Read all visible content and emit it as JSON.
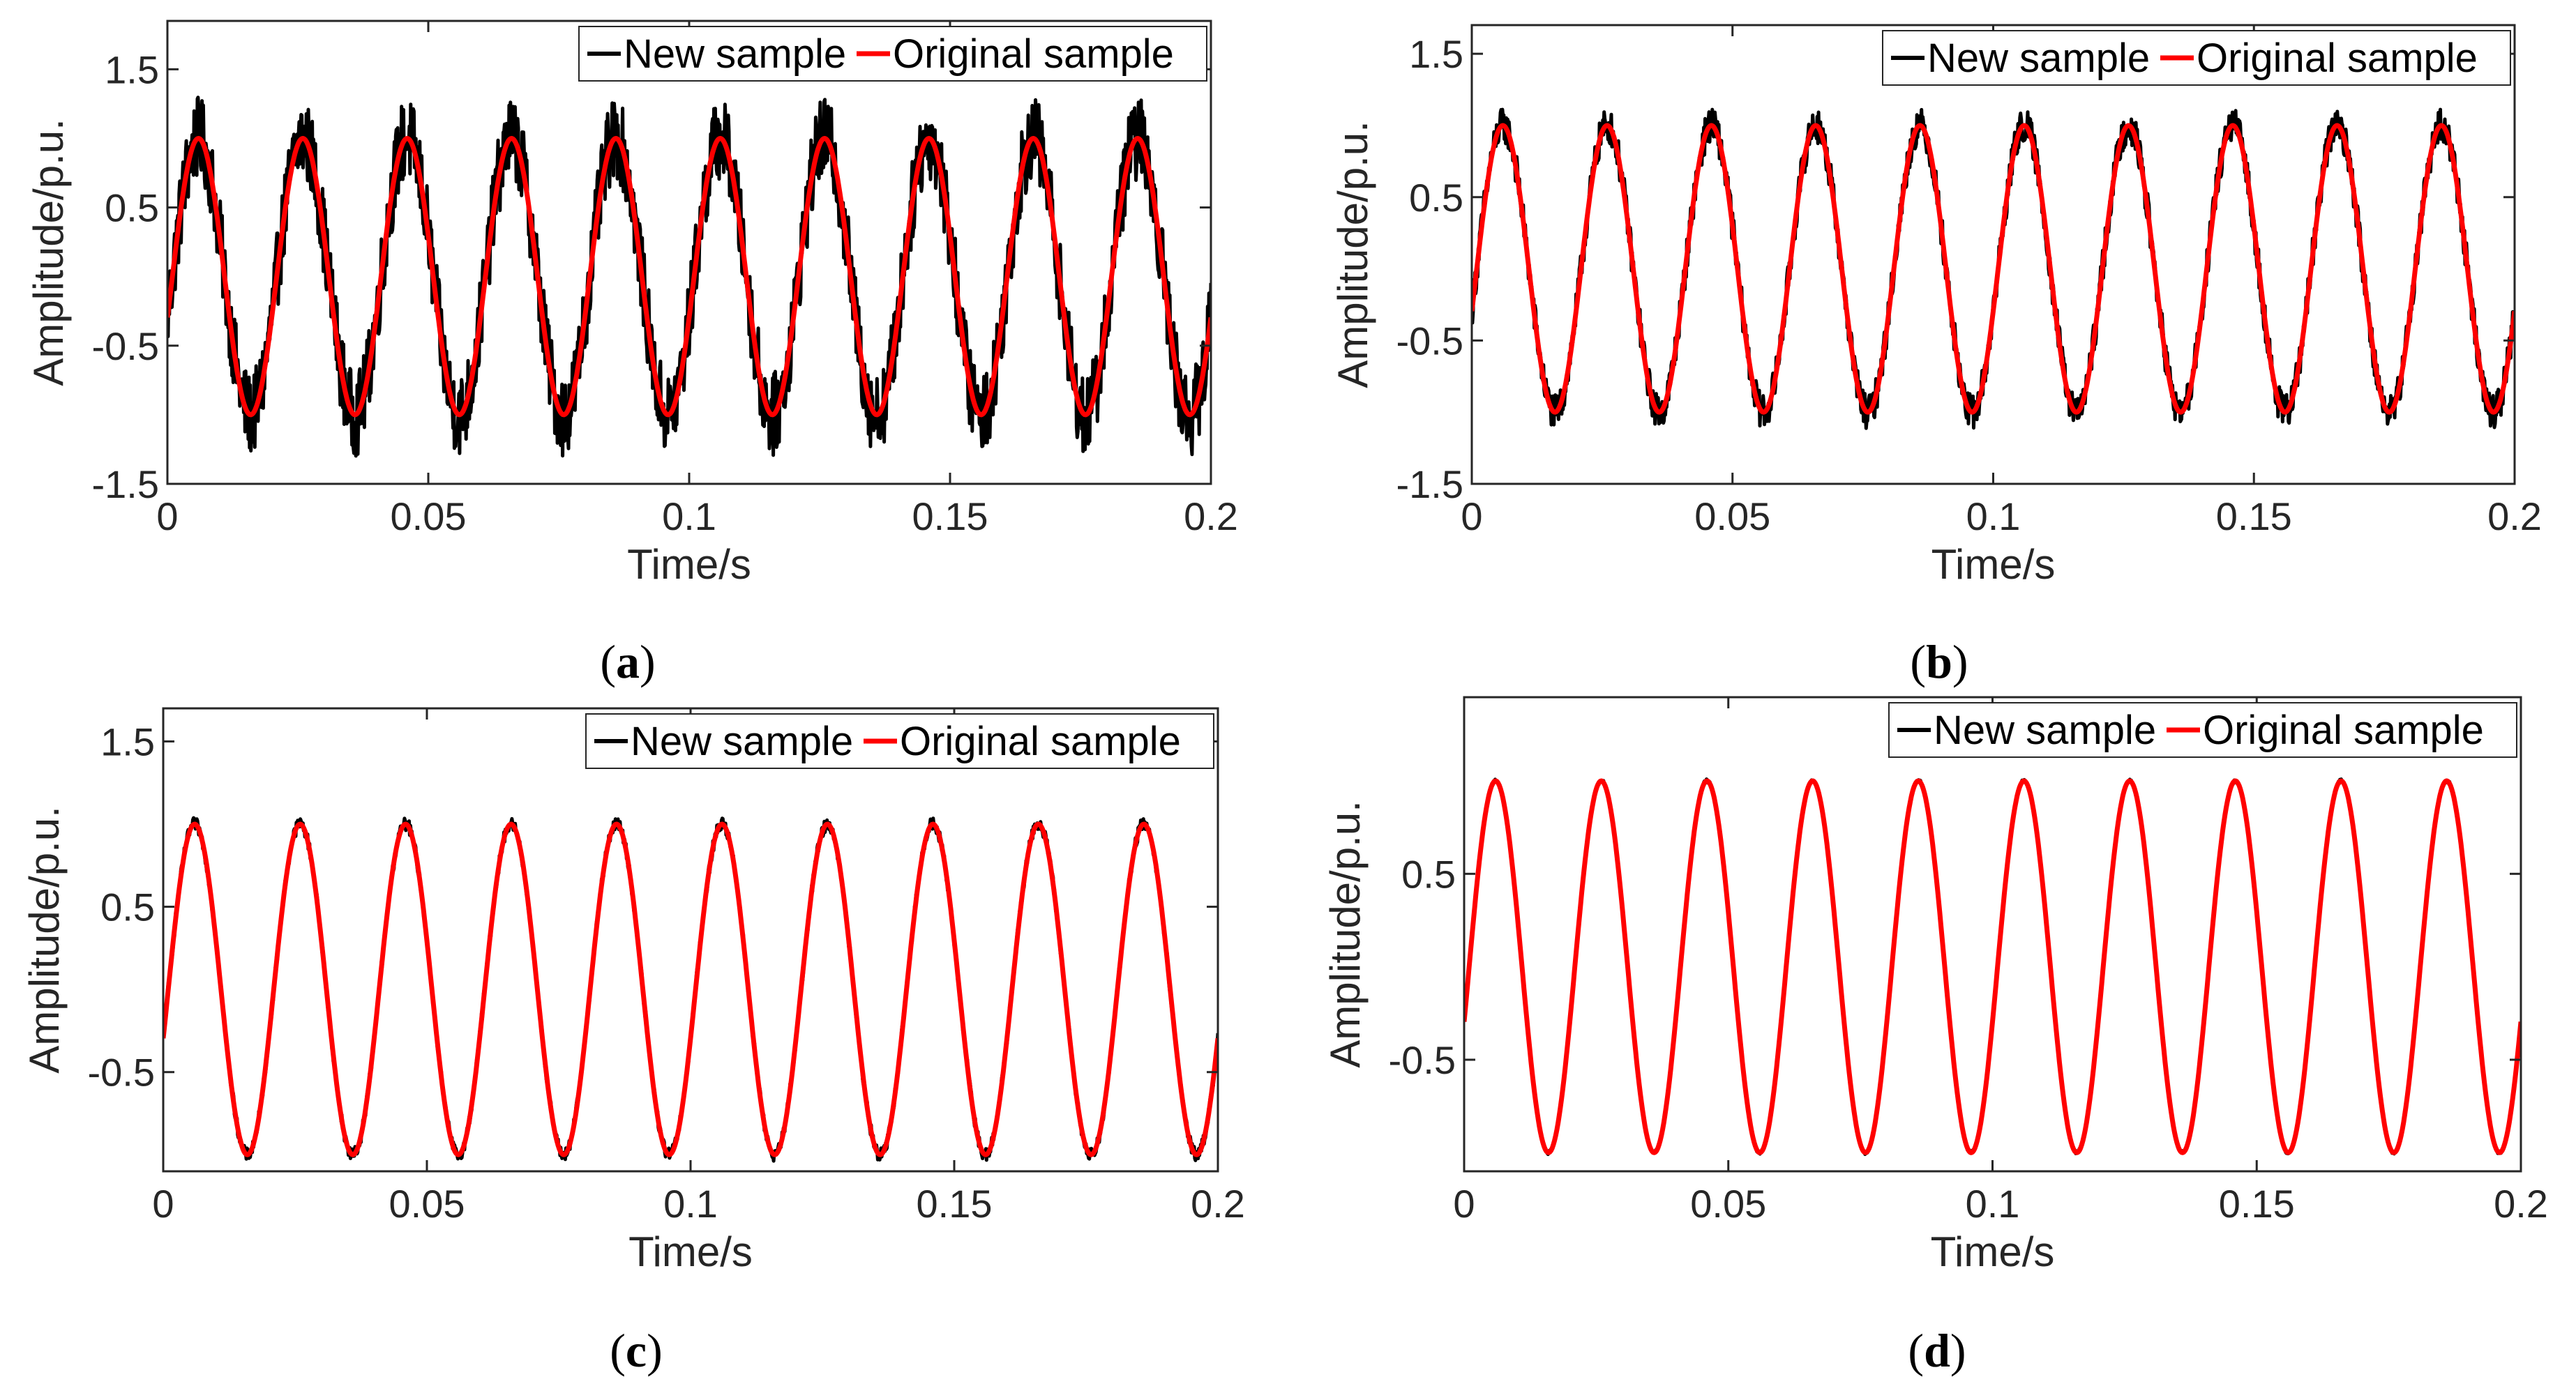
{
  "figure": {
    "colors": {
      "new_sample": "#000000",
      "original_sample": "#ff0000",
      "axis": "#262626"
    }
  },
  "chart_data": [
    {
      "id": "a",
      "type": "line",
      "caption_open": "(",
      "caption_letter": "a",
      "caption_close": ")",
      "xlabel": "Time/s",
      "ylabel": "Amplitude/p.u.",
      "xlim": [
        0,
        0.2
      ],
      "ylim": [
        -1.5,
        1.85
      ],
      "xticks": [
        0,
        0.05,
        0.1,
        0.15,
        0.2
      ],
      "xtick_labels": [
        "0",
        "0.05",
        "0.1",
        "0.15",
        "0.2"
      ],
      "yticks": [
        -1.5,
        -0.5,
        0.5,
        1.5
      ],
      "ytick_labels": [
        "-1.5",
        "-0.5",
        "0.5",
        "1.5"
      ],
      "legend": [
        "New sample",
        "Original sample"
      ],
      "legend_position": "top-right",
      "series": [
        {
          "name": "New sample",
          "frequency_hz": 50,
          "amplitude": 1.0,
          "phase_rad": -0.3,
          "noise_amplitude": 0.3
        },
        {
          "name": "Original sample",
          "frequency_hz": 50,
          "amplitude": 1.0,
          "phase_rad": -0.3,
          "noise_amplitude": 0
        }
      ]
    },
    {
      "id": "b",
      "type": "line",
      "caption_open": "(",
      "caption_letter": "b",
      "caption_close": ")",
      "xlabel": "Time/s",
      "ylabel": "Amplitude/p.u.",
      "xlim": [
        0,
        0.2
      ],
      "ylim": [
        -1.5,
        1.7
      ],
      "xticks": [
        0,
        0.05,
        0.1,
        0.15,
        0.2
      ],
      "xtick_labels": [
        "0",
        "0.05",
        "0.1",
        "0.15",
        "0.2"
      ],
      "yticks": [
        -1.5,
        -0.5,
        0.5,
        1.5
      ],
      "ytick_labels": [
        "-1.5",
        "-0.5",
        "0.5",
        "1.5"
      ],
      "legend": [
        "New sample",
        "Original sample"
      ],
      "legend_position": "top-right",
      "series": [
        {
          "name": "New sample",
          "frequency_hz": 50,
          "amplitude": 1.0,
          "phase_rad": -0.3,
          "noise_amplitude": 0.12
        },
        {
          "name": "Original sample",
          "frequency_hz": 50,
          "amplitude": 1.0,
          "phase_rad": -0.3,
          "noise_amplitude": 0
        }
      ]
    },
    {
      "id": "c",
      "type": "line",
      "caption_open": "(",
      "caption_letter": "c",
      "caption_close": ")",
      "xlabel": "Time/s",
      "ylabel": "Amplitude/p.u.",
      "xlim": [
        0,
        0.2
      ],
      "ylim": [
        -1.1,
        1.7
      ],
      "xticks": [
        0,
        0.05,
        0.1,
        0.15,
        0.2
      ],
      "xtick_labels": [
        "0",
        "0.05",
        "0.1",
        "0.15",
        "0.2"
      ],
      "yticks": [
        -0.5,
        0.5,
        1.5
      ],
      "ytick_labels": [
        "-0.5",
        "0.5",
        "1.5"
      ],
      "legend": [
        "New sample",
        "Original sample"
      ],
      "legend_position": "top-right",
      "series": [
        {
          "name": "New sample",
          "frequency_hz": 50,
          "amplitude": 1.0,
          "phase_rad": -0.3,
          "noise_amplitude": 0.04
        },
        {
          "name": "Original sample",
          "frequency_hz": 50,
          "amplitude": 1.0,
          "phase_rad": -0.3,
          "noise_amplitude": 0
        }
      ]
    },
    {
      "id": "d",
      "type": "line",
      "caption_open": "(",
      "caption_letter": "d",
      "caption_close": ")",
      "xlabel": "Time/s",
      "ylabel": "Amplitude/p.u.",
      "xlim": [
        0,
        0.2
      ],
      "ylim": [
        -1.1,
        1.45
      ],
      "xticks": [
        0,
        0.05,
        0.1,
        0.15,
        0.2
      ],
      "xtick_labels": [
        "0",
        "0.05",
        "0.1",
        "0.15",
        "0.2"
      ],
      "yticks": [
        -0.5,
        0.5
      ],
      "ytick_labels": [
        "-0.5",
        "0.5"
      ],
      "legend": [
        "New sample",
        "Original sample"
      ],
      "legend_position": "top-right",
      "series": [
        {
          "name": "New sample",
          "frequency_hz": 50,
          "amplitude": 1.0,
          "phase_rad": -0.3,
          "noise_amplitude": 0.01
        },
        {
          "name": "Original sample",
          "frequency_hz": 50,
          "amplitude": 1.0,
          "phase_rad": -0.3,
          "noise_amplitude": 0
        }
      ]
    }
  ]
}
